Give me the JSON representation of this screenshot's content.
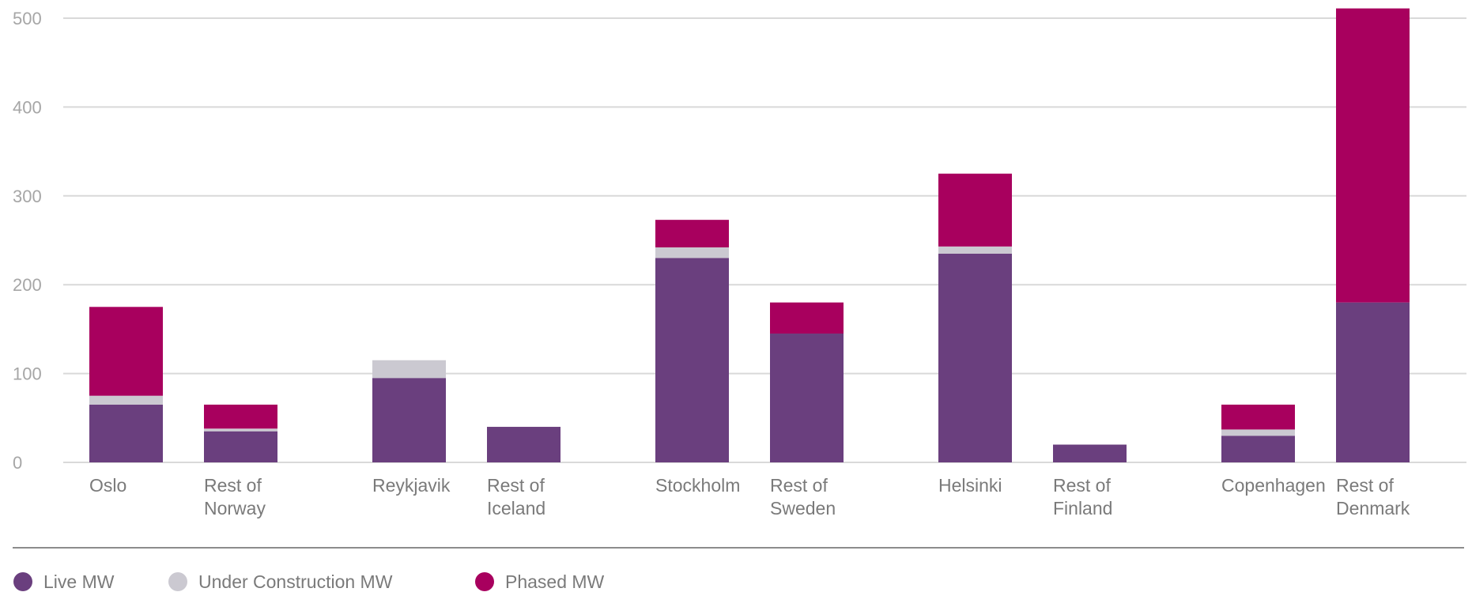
{
  "chart_data": {
    "type": "bar",
    "stacked": true,
    "categories": [
      [
        "Oslo"
      ],
      [
        "Rest of",
        "Norway"
      ],
      [
        "Reykjavik"
      ],
      [
        "Rest of",
        "Iceland"
      ],
      [
        "Stockholm"
      ],
      [
        "Rest of",
        "Sweden"
      ],
      [
        "Helsinki"
      ],
      [
        "Rest of",
        "Finland"
      ],
      [
        "Copenhagen"
      ],
      [
        "Rest of",
        "Denmark"
      ]
    ],
    "series": [
      {
        "name": "Live MW",
        "color": "#6a3f7e",
        "values": [
          65,
          35,
          95,
          40,
          230,
          145,
          235,
          20,
          30,
          180
        ]
      },
      {
        "name": "Under Construction MW",
        "color": "#cbc9d1",
        "values": [
          10,
          3,
          20,
          0,
          12,
          0,
          8,
          0,
          7,
          0
        ]
      },
      {
        "name": "Phased MW",
        "color": "#a8005e",
        "values": [
          100,
          27,
          0,
          0,
          31,
          35,
          82,
          0,
          28,
          331
        ]
      }
    ],
    "yticks": [
      0,
      100,
      200,
      300,
      400,
      500
    ],
    "ylim": [
      0,
      500
    ],
    "grid": true,
    "legend_position": "bottom-left"
  }
}
